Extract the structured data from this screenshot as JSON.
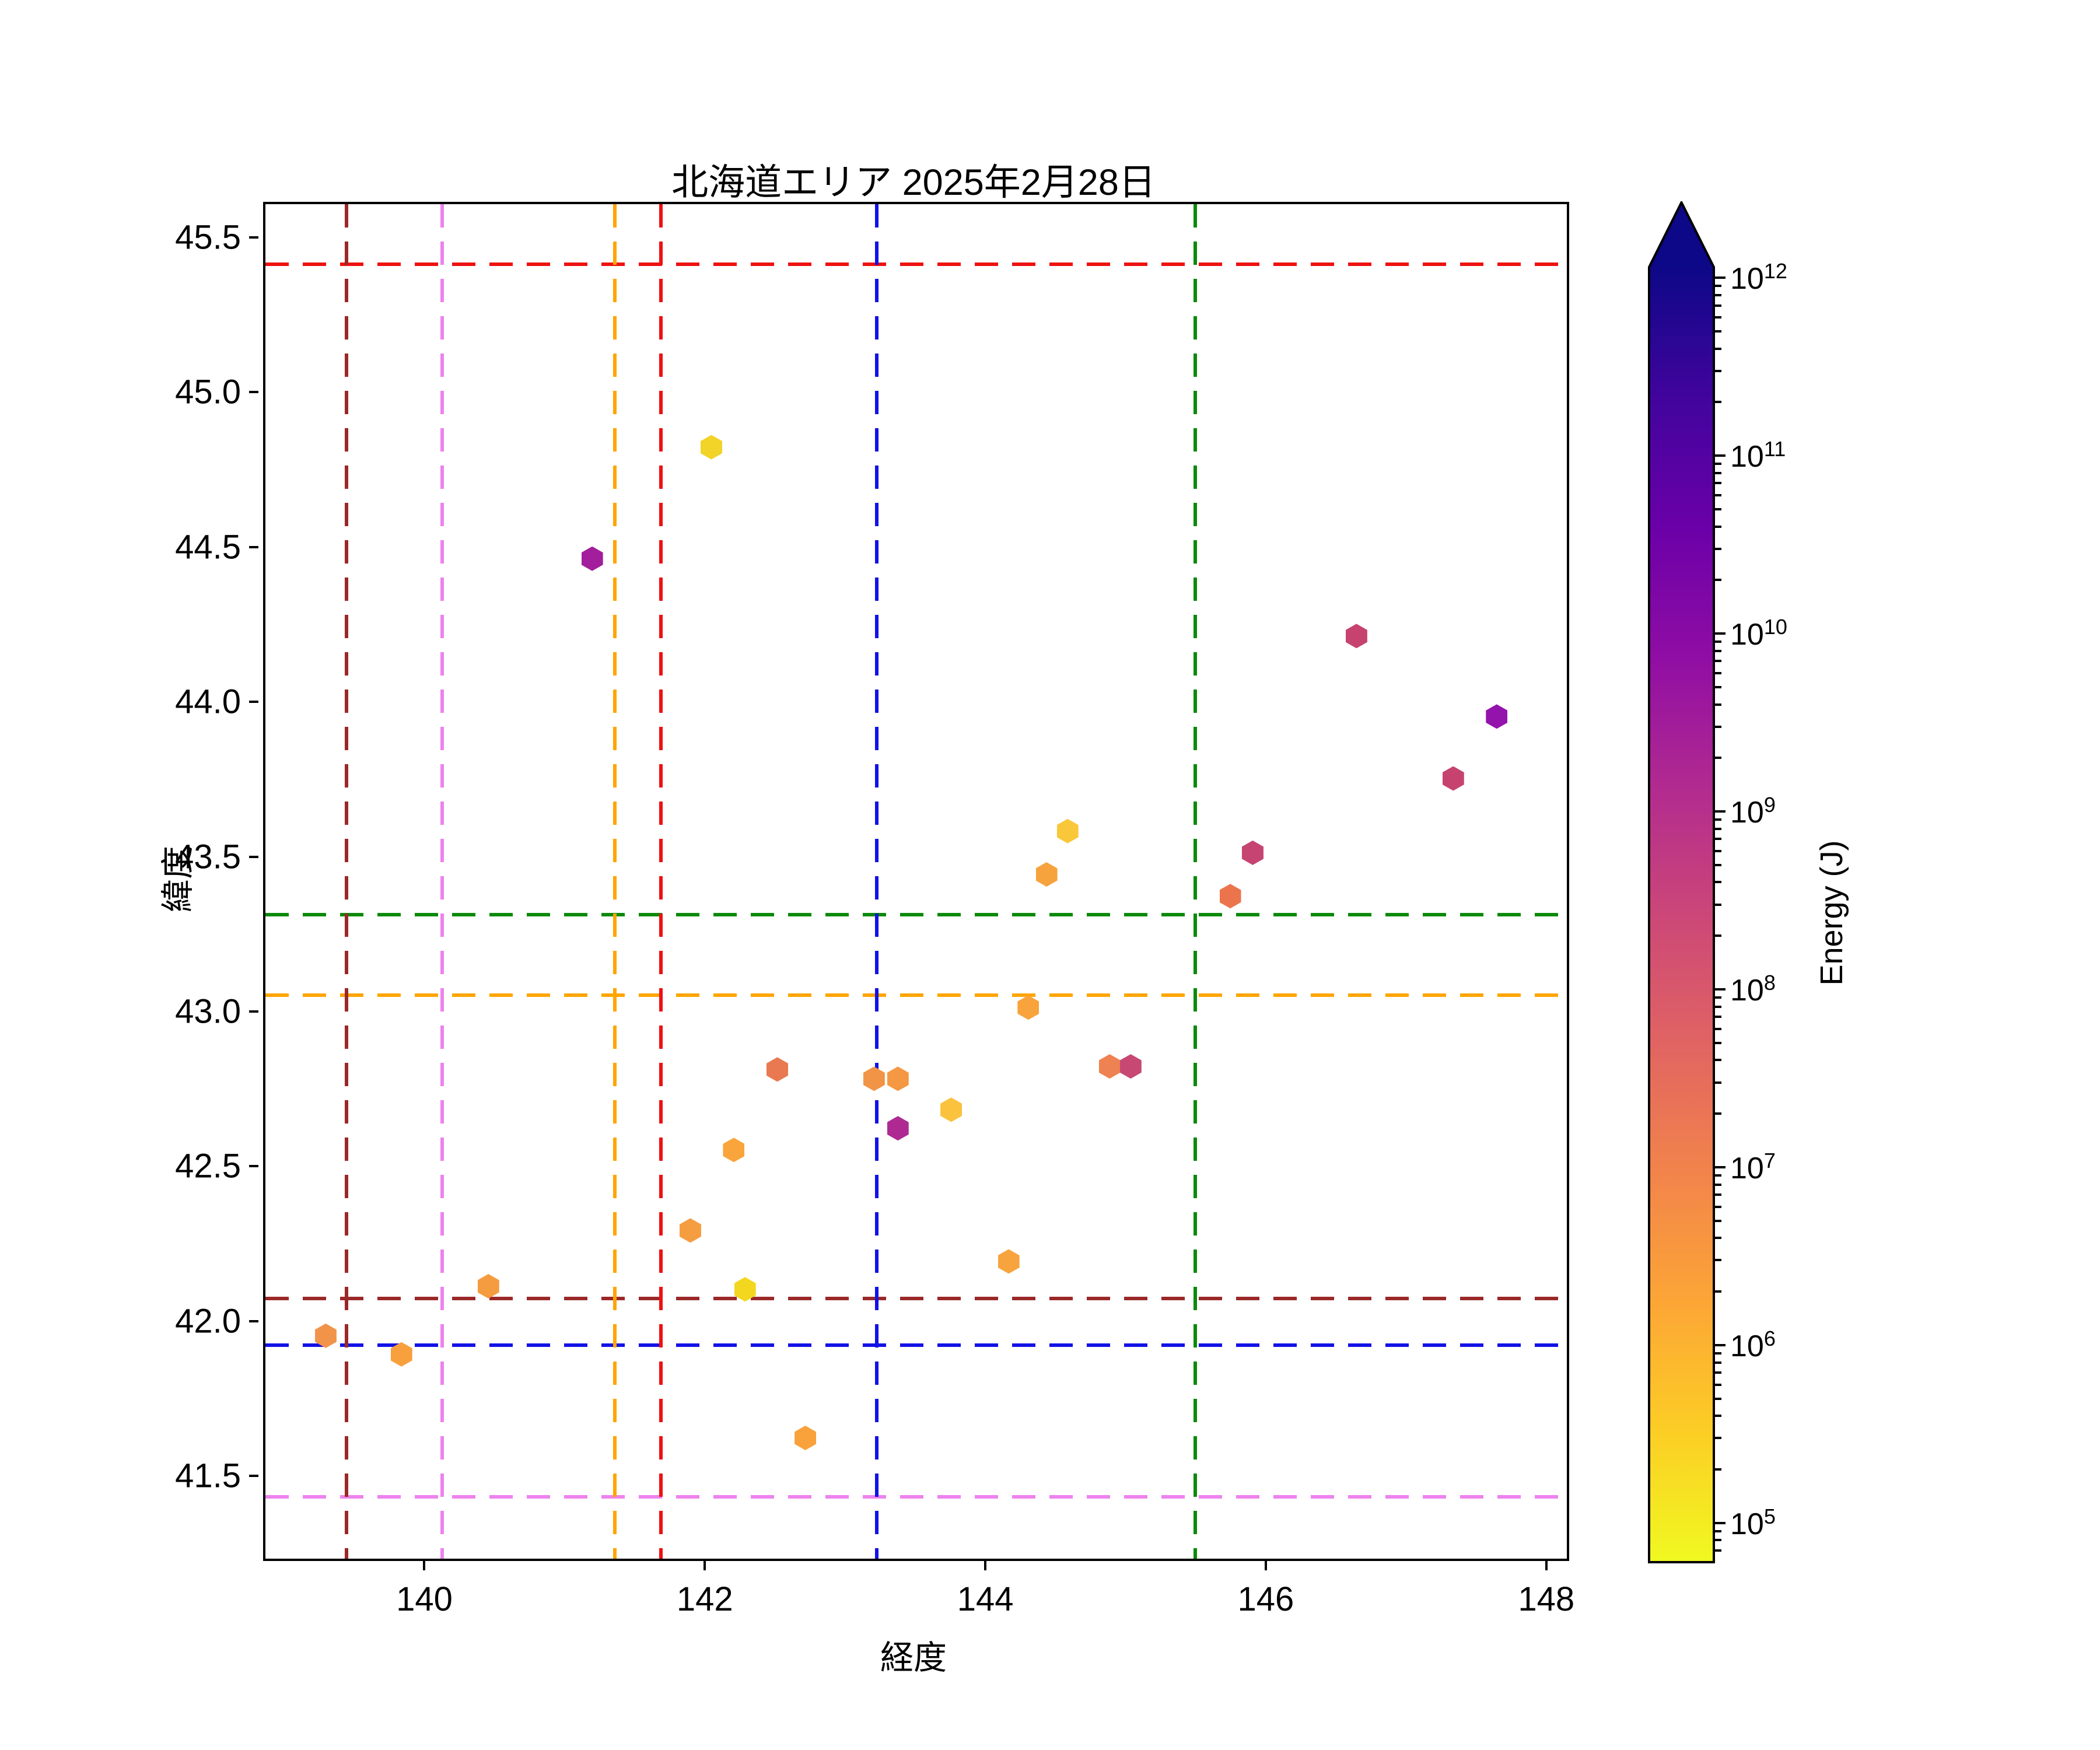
{
  "chart_data": {
    "type": "scatter",
    "title": "北海道エリア 2025年2月28日",
    "xlabel": "経度",
    "ylabel": "緯度",
    "marker": "hexagon",
    "grid": false,
    "axes": {
      "xlim": [
        138.85,
        148.13
      ],
      "ylim": [
        41.24,
        45.615
      ],
      "xticks": [
        140,
        142,
        144,
        146,
        148
      ],
      "xtick_labels": [
        "140",
        "142",
        "144",
        "146",
        "148"
      ],
      "yticks": [
        41.5,
        42.0,
        42.5,
        43.0,
        43.5,
        44.0,
        44.5,
        45.0,
        45.5
      ],
      "ytick_labels": [
        "41.5",
        "42.0",
        "42.5",
        "43.0",
        "43.5",
        "44.0",
        "44.5",
        "45.0",
        "45.5"
      ]
    },
    "points": [
      {
        "lon": 142.03,
        "lat": 44.83,
        "color": "#f2d327",
        "energy_j": 300000
      },
      {
        "lon": 141.18,
        "lat": 44.47,
        "color": "#a21e9c",
        "energy_j": 2500000000
      },
      {
        "lon": 146.63,
        "lat": 44.22,
        "color": "#c7436f",
        "energy_j": 250000000
      },
      {
        "lon": 147.63,
        "lat": 43.96,
        "color": "#9513ad",
        "energy_j": 8000000000
      },
      {
        "lon": 147.32,
        "lat": 43.76,
        "color": "#c7436f",
        "energy_j": 250000000
      },
      {
        "lon": 145.89,
        "lat": 43.52,
        "color": "#c64471",
        "energy_j": 240000000
      },
      {
        "lon": 145.73,
        "lat": 43.38,
        "color": "#ec744d",
        "energy_j": 8000000
      },
      {
        "lon": 144.57,
        "lat": 43.59,
        "color": "#f9c73a",
        "energy_j": 600000
      },
      {
        "lon": 144.42,
        "lat": 43.45,
        "color": "#f6a23d",
        "energy_j": 1500000
      },
      {
        "lon": 144.29,
        "lat": 43.02,
        "color": "#f8a33c",
        "energy_j": 1400000
      },
      {
        "lon": 142.5,
        "lat": 42.82,
        "color": "#e87950",
        "energy_j": 12000000
      },
      {
        "lon": 143.19,
        "lat": 42.79,
        "color": "#f29445",
        "energy_j": 2500000
      },
      {
        "lon": 143.36,
        "lat": 42.79,
        "color": "#f49843",
        "energy_j": 2000000
      },
      {
        "lon": 143.36,
        "lat": 42.63,
        "color": "#ae2a92",
        "energy_j": 1500000000
      },
      {
        "lon": 143.74,
        "lat": 42.69,
        "color": "#fbc23d",
        "energy_j": 700000
      },
      {
        "lon": 142.19,
        "lat": 42.56,
        "color": "#f9a53c",
        "energy_j": 1300000
      },
      {
        "lon": 141.88,
        "lat": 42.3,
        "color": "#f59d41",
        "energy_j": 1800000
      },
      {
        "lon": 144.87,
        "lat": 42.83,
        "color": "#ee8252",
        "energy_j": 5000000
      },
      {
        "lon": 145.02,
        "lat": 42.83,
        "color": "#c74873",
        "energy_j": 200000000
      },
      {
        "lon": 144.15,
        "lat": 42.2,
        "color": "#f8a43e",
        "energy_j": 1400000
      },
      {
        "lon": 142.27,
        "lat": 42.11,
        "color": "#f2d71e",
        "energy_j": 200000
      },
      {
        "lon": 140.44,
        "lat": 42.12,
        "color": "#f59b40",
        "energy_j": 2000000
      },
      {
        "lon": 139.28,
        "lat": 41.96,
        "color": "#f2934a",
        "energy_j": 3000000
      },
      {
        "lon": 139.82,
        "lat": 41.9,
        "color": "#f7a03d",
        "energy_j": 1700000
      },
      {
        "lon": 142.7,
        "lat": 41.63,
        "color": "#f9a23c",
        "energy_j": 1500000
      }
    ],
    "reference_lines": {
      "vertical": [
        {
          "lon": 139.43,
          "color": "#9b2828",
          "color_name": "darkred"
        },
        {
          "lon": 140.11,
          "color": "#ee82ee",
          "color_name": "violet"
        },
        {
          "lon": 141.34,
          "color": "#ffa500",
          "color_name": "orange"
        },
        {
          "lon": 141.67,
          "color": "#ee1111",
          "color_name": "red"
        },
        {
          "lon": 143.21,
          "color": "#1212e6",
          "color_name": "blue"
        },
        {
          "lon": 145.48,
          "color": "#0a8a0a",
          "color_name": "green"
        }
      ],
      "horizontal": [
        {
          "lat": 45.42,
          "color": "#ee1111",
          "color_name": "red"
        },
        {
          "lat": 43.32,
          "color": "#0a8a0a",
          "color_name": "green"
        },
        {
          "lat": 43.06,
          "color": "#ffa500",
          "color_name": "orange"
        },
        {
          "lat": 42.08,
          "color": "#9b2828",
          "color_name": "darkred"
        },
        {
          "lat": 41.93,
          "color": "#1212e6",
          "color_name": "blue"
        },
        {
          "lat": 41.44,
          "color": "#ee82ee",
          "color_name": "violet"
        }
      ]
    },
    "colorbar": {
      "label": "Energy (J)",
      "scale": "log",
      "extend": "max",
      "tick_exponents": [
        5,
        6,
        7,
        8,
        9,
        10,
        11,
        12
      ],
      "tick_base": "10",
      "range_exponents": [
        4.78,
        12.06
      ],
      "gradient_top_to_bottom": [
        "#0d0887",
        "#41049d",
        "#6a00a8",
        "#8f0da4",
        "#b12a90",
        "#cc4778",
        "#e16462",
        "#f2844b",
        "#fca636",
        "#fcce25",
        "#f0f921"
      ]
    }
  }
}
